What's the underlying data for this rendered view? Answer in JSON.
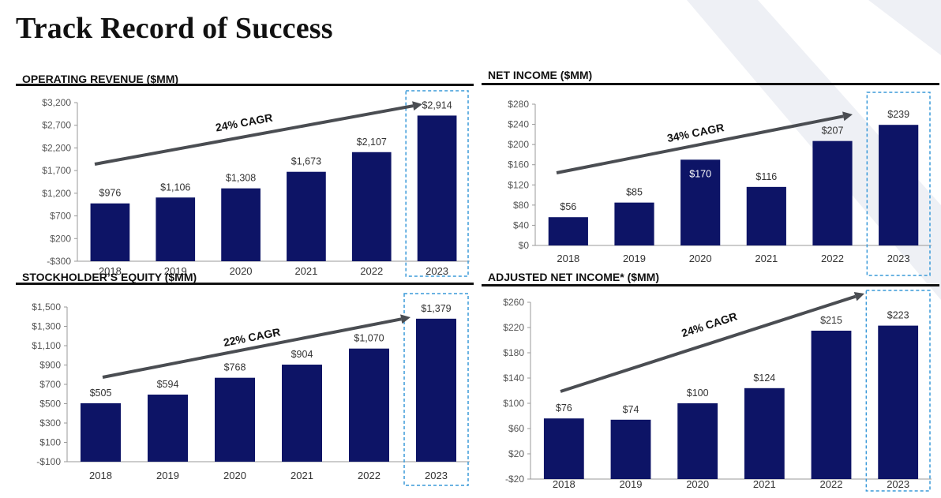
{
  "page": {
    "title": "Track Record of Success"
  },
  "colors": {
    "bar": "#0d1466",
    "arrow": "#4a4d52",
    "highlight": "#3a9ad9",
    "axis": "#999999"
  },
  "chart_data": [
    {
      "type": "bar",
      "title": "OPERATING REVENUE ($MM)",
      "categories": [
        "2018",
        "2019",
        "2020",
        "2021",
        "2022",
        "2023"
      ],
      "values": [
        976,
        1106,
        1308,
        1673,
        2107,
        2914
      ],
      "value_labels": [
        "$976",
        "$1,106",
        "$1,308",
        "$1,673",
        "$2,107",
        "$2,914"
      ],
      "yticks": [
        -300,
        200,
        700,
        1200,
        1700,
        2200,
        2700,
        3200
      ],
      "ytick_labels": [
        "-$300",
        "$200",
        "$700",
        "$1,200",
        "$1,700",
        "$2,200",
        "$2,700",
        "$3,200"
      ],
      "ylim": [
        -300,
        3200
      ],
      "annotation": "24% CAGR",
      "highlight_category": "2023",
      "grid": false
    },
    {
      "type": "bar",
      "title": "NET INCOME ($MM)",
      "categories": [
        "2018",
        "2019",
        "2020",
        "2021",
        "2022",
        "2023"
      ],
      "values": [
        56,
        85,
        170,
        116,
        207,
        239
      ],
      "value_labels": [
        "$56",
        "$85",
        "$170",
        "$116",
        "$207",
        "$239"
      ],
      "yticks": [
        0,
        40,
        80,
        120,
        160,
        200,
        240,
        280
      ],
      "ytick_labels": [
        "$0",
        "$40",
        "$80",
        "$120",
        "$160",
        "$200",
        "$240",
        "$280"
      ],
      "ylim": [
        0,
        280
      ],
      "annotation": "34% CAGR",
      "highlight_category": "2023",
      "label_inside_category": "2020",
      "grid": false
    },
    {
      "type": "bar",
      "title": "STOCKHOLDER’S EQUITY ($MM)",
      "categories": [
        "2018",
        "2019",
        "2020",
        "2021",
        "2022",
        "2023"
      ],
      "values": [
        505,
        594,
        768,
        904,
        1070,
        1379
      ],
      "value_labels": [
        "$505",
        "$594",
        "$768",
        "$904",
        "$1,070",
        "$1,379"
      ],
      "yticks": [
        -100,
        100,
        300,
        500,
        700,
        900,
        1100,
        1300,
        1500
      ],
      "ytick_labels": [
        "-$100",
        "$100",
        "$300",
        "$500",
        "$700",
        "$900",
        "$1,100",
        "$1,300",
        "$1,500"
      ],
      "ylim": [
        -100,
        1500
      ],
      "annotation": "22% CAGR",
      "highlight_category": "2023",
      "grid": false
    },
    {
      "type": "bar",
      "title": "ADJUSTED NET INCOME* ($MM)",
      "categories": [
        "2018",
        "2019",
        "2020",
        "2021",
        "2022",
        "2023"
      ],
      "values": [
        76,
        74,
        100,
        124,
        215,
        223
      ],
      "value_labels": [
        "$76",
        "$74",
        "$100",
        "$124",
        "$215",
        "$223"
      ],
      "yticks": [
        -20,
        20,
        60,
        100,
        140,
        180,
        220,
        260
      ],
      "ytick_labels": [
        "-$20",
        "$20",
        "$60",
        "$100",
        "$140",
        "$180",
        "$220",
        "$260"
      ],
      "ylim": [
        -20,
        260
      ],
      "annotation": "24% CAGR",
      "highlight_category": "2023",
      "grid": false
    }
  ]
}
